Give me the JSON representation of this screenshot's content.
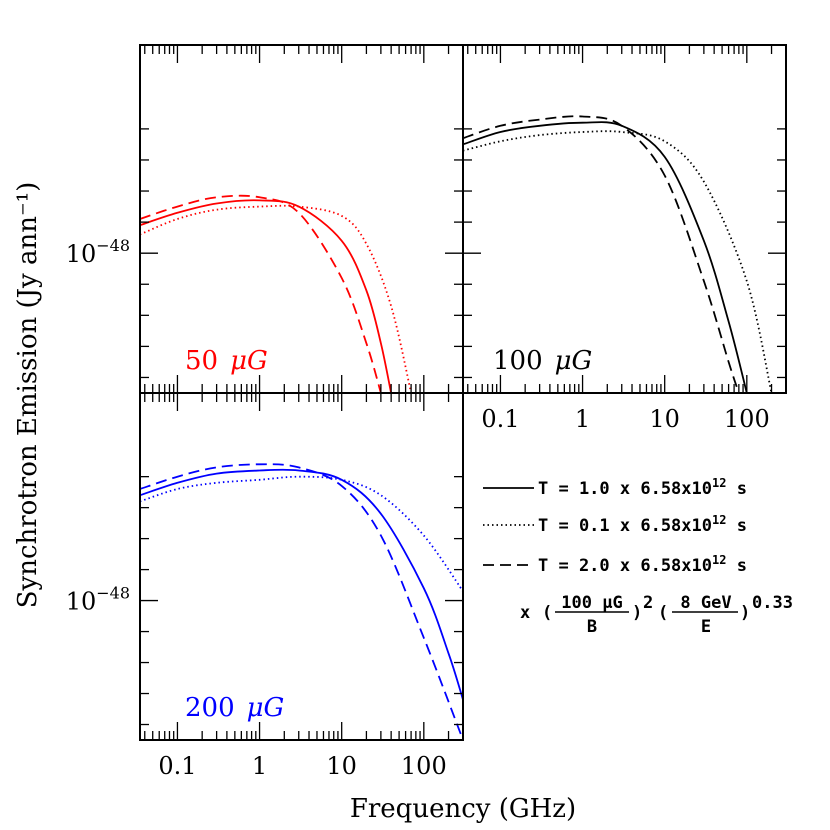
{
  "chart_data": {
    "type": "line",
    "x_axis": {
      "label": "Frequency (GHz)",
      "scale": "log",
      "range_ghz": [
        0.035,
        300
      ],
      "tick_labels": [
        "0.1",
        "1",
        "10",
        "100"
      ]
    },
    "y_axis": {
      "label": "Synchrotron Emission (Jy ann⁻¹)",
      "scale": "log",
      "tick_label_base": "10",
      "tick_label_exp": "−48"
    },
    "colors": {
      "50": "#ff0000",
      "100": "#000000",
      "200": "#0000ff"
    },
    "panels": [
      {
        "id": "50",
        "label_value": "50",
        "label_unit": "μG",
        "color": "#ff0000",
        "series": [
          {
            "style": "solid",
            "frequency_ghz": [
              0.035,
              0.1,
              0.3,
              1,
              3,
              10,
              20,
              30,
              40
            ],
            "emission_log10": [
              -47.91,
              -47.87,
              -47.84,
              -47.83,
              -47.85,
              -47.96,
              -48.12,
              -48.29,
              -48.45
            ]
          },
          {
            "style": "dotted",
            "frequency_ghz": [
              0.035,
              0.1,
              0.3,
              1,
              3,
              10,
              20,
              40,
              70
            ],
            "emission_log10": [
              -47.94,
              -47.89,
              -47.86,
              -47.85,
              -47.85,
              -47.88,
              -47.97,
              -48.17,
              -48.45
            ]
          },
          {
            "style": "dashed",
            "frequency_ghz": [
              0.035,
              0.1,
              0.3,
              1,
              3,
              10,
              20,
              30
            ],
            "emission_log10": [
              -47.89,
              -47.85,
              -47.82,
              -47.82,
              -47.87,
              -48.08,
              -48.29,
              -48.45
            ]
          }
        ]
      },
      {
        "id": "100",
        "label_value": "100",
        "label_unit": "μG",
        "color": "#000000",
        "series": [
          {
            "style": "solid",
            "frequency_ghz": [
              0.035,
              0.1,
              0.3,
              1,
              3,
              10,
              30,
              60,
              100
            ],
            "emission_log10": [
              -47.65,
              -47.61,
              -47.59,
              -47.58,
              -47.59,
              -47.69,
              -47.96,
              -48.22,
              -48.45
            ]
          },
          {
            "style": "dotted",
            "frequency_ghz": [
              0.035,
              0.1,
              0.3,
              1,
              3,
              10,
              30,
              100,
              200
            ],
            "emission_log10": [
              -47.67,
              -47.64,
              -47.62,
              -47.61,
              -47.61,
              -47.64,
              -47.77,
              -48.09,
              -48.45
            ]
          },
          {
            "style": "dashed",
            "frequency_ghz": [
              0.035,
              0.1,
              0.3,
              1,
              3,
              10,
              30,
              60,
              80
            ],
            "emission_log10": [
              -47.63,
              -47.59,
              -47.57,
              -47.56,
              -47.59,
              -47.75,
              -48.09,
              -48.35,
              -48.45
            ]
          }
        ]
      },
      {
        "id": "200",
        "label_value": "200",
        "label_unit": "μG",
        "color": "#0000ff",
        "series": [
          {
            "style": "solid",
            "frequency_ghz": [
              0.035,
              0.1,
              0.3,
              1,
              3,
              10,
              30,
              100,
              200,
              300
            ],
            "emission_log10": [
              -47.66,
              -47.62,
              -47.59,
              -47.58,
              -47.58,
              -47.61,
              -47.72,
              -47.96,
              -48.17,
              -48.32
            ]
          },
          {
            "style": "dotted",
            "frequency_ghz": [
              0.035,
              0.1,
              0.3,
              1,
              3,
              10,
              30,
              100,
              300
            ],
            "emission_log10": [
              -47.68,
              -47.64,
              -47.62,
              -47.61,
              -47.6,
              -47.61,
              -47.66,
              -47.79,
              -47.97
            ]
          },
          {
            "style": "dashed",
            "frequency_ghz": [
              0.035,
              0.1,
              0.3,
              1,
              3,
              10,
              30,
              100,
              300
            ],
            "emission_log10": [
              -47.64,
              -47.6,
              -47.57,
              -47.56,
              -47.57,
              -47.63,
              -47.79,
              -48.12,
              -48.45
            ]
          }
        ]
      }
    ],
    "legend": {
      "entries": [
        {
          "style": "solid",
          "prefix": "T = 1.0 x 6.58x10",
          "exp": "12",
          "suffix": " s"
        },
        {
          "style": "dotted",
          "prefix": "T = 0.1 x 6.58x10",
          "exp": "12",
          "suffix": " s"
        },
        {
          "style": "dashed",
          "prefix": "T = 2.0 x 6.58x10",
          "exp": "12",
          "suffix": " s"
        }
      ],
      "formula": {
        "x": "x",
        "paren_open": "(",
        "frac1_num": "100 μG",
        "frac1_den": "B",
        "paren_close1": ")",
        "exp1": "2",
        "frac2_num": "8 GeV",
        "frac2_den": "E",
        "paren_close2": ")",
        "exp2": "0.33"
      }
    }
  }
}
